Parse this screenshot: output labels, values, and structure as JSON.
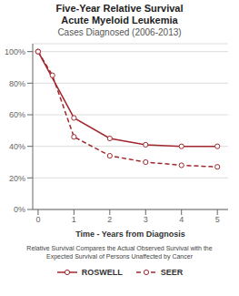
{
  "chart_data": {
    "type": "line",
    "title": "Five-Year Relative Survival\nAcute Myeloid Leukemia",
    "subtitle": "Cases Diagnosed (2006-2013)",
    "x_label": "Time - Years from Diagnosis",
    "annotations": [
      "Relative Survival Compares the Actual Observed Survival with the",
      "Expected Survival of Persons Unaffected by Cancer"
    ],
    "series": [
      {
        "name": "ROSWELL",
        "color": "#A0272D",
        "marker": "circle",
        "line_style": "solid",
        "x": [
          0,
          1,
          2,
          3,
          4,
          5
        ],
        "values": [
          100,
          58,
          45,
          41,
          40,
          40
        ]
      },
      {
        "name": "SEER",
        "color": "#A0272D",
        "marker": "circle",
        "line_style": "dashed",
        "x": [
          0,
          0.4,
          1,
          2,
          3,
          4,
          5
        ],
        "values": [
          100,
          85,
          46,
          34,
          30,
          28,
          27
        ]
      }
    ],
    "xlim": [
      -0.15,
      5.3
    ],
    "ylim": [
      0,
      105
    ],
    "xticks": [
      0,
      1,
      2,
      3,
      4,
      5
    ],
    "yticks": [
      {
        "value": 0,
        "label": "0%"
      },
      {
        "value": 20,
        "label": "20%"
      },
      {
        "value": 40,
        "label": "40%"
      },
      {
        "value": 60,
        "label": "60%"
      },
      {
        "value": 80,
        "label": "80%"
      },
      {
        "value": 100,
        "label": "100%"
      }
    ],
    "grid": true
  }
}
